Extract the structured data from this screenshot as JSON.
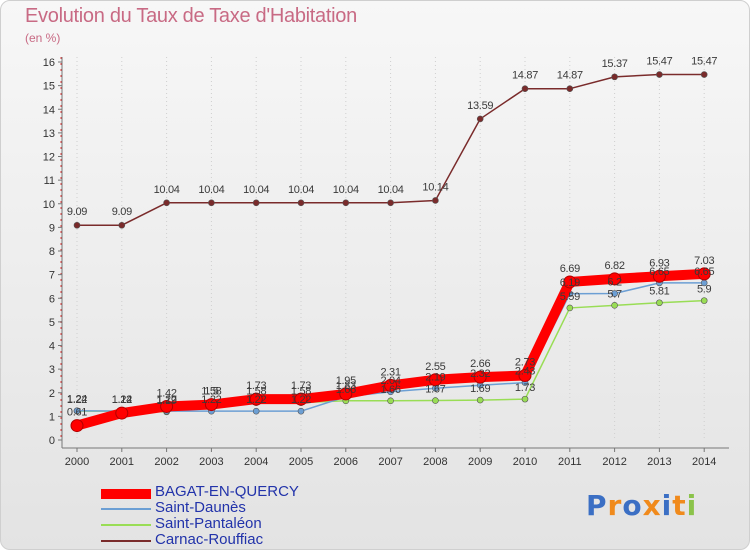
{
  "header": {
    "title": "Evolution du Taux de Taxe d'Habitation",
    "subtitle": "(en %)"
  },
  "brand": {
    "letters": [
      "P",
      "r",
      "o",
      "x",
      "i",
      "t",
      "i"
    ],
    "colors": [
      "#3b6fc4",
      "#f08a1c",
      "#3b6fc4",
      "#f08a1c",
      "#3b6fc4",
      "#f08a1c",
      "#8bc34a"
    ]
  },
  "chart_data": {
    "type": "line",
    "title": "Evolution du Taux de Taxe d'Habitation",
    "subtitle": "(en %)",
    "x": [
      "2000",
      "2001",
      "2002",
      "2003",
      "2004",
      "2005",
      "2006",
      "2007",
      "2008",
      "2009",
      "2010",
      "2011",
      "2012",
      "2013",
      "2014"
    ],
    "ylim": [
      0,
      16
    ],
    "yticks": [
      0,
      1,
      2,
      3,
      4,
      5,
      6,
      7,
      8,
      9,
      10,
      11,
      12,
      13,
      14,
      15,
      16
    ],
    "grid": "dotted vertical",
    "legend_position": "bottom-left",
    "series": [
      {
        "name": "BAGAT-EN-QUERCY",
        "color": "#ff0000",
        "values": [
          0.61,
          1.14,
          1.42,
          1.5,
          1.73,
          1.73,
          1.95,
          2.31,
          2.55,
          2.66,
          2.73,
          6.69,
          6.82,
          6.93,
          7.03
        ],
        "labels": [
          "0.61",
          "1.14",
          "1.42",
          "1.5",
          "1.73",
          "1.73",
          "1.95",
          "2.31",
          "2.55",
          "2.66",
          "2.73",
          "6.69",
          "6.82",
          "6.93",
          "7.03"
        ]
      },
      {
        "name": "Saint-Daunès",
        "color": "#6c9fd4",
        "values": [
          1.24,
          1.22,
          1.22,
          1.22,
          1.22,
          1.22,
          1.83,
          2.04,
          2.19,
          2.32,
          2.43,
          6.19,
          6.2,
          6.65,
          6.65
        ],
        "labels": [
          "1.24",
          "1.22",
          "1.22",
          "1.22",
          "1.22",
          "1.22",
          "1.83",
          "2.04",
          "2.19",
          "2.32",
          "2.43",
          "6.19",
          "6.2",
          "6.65",
          "6.65"
        ]
      },
      {
        "name": "Saint-Pantaléon",
        "color": "#99dd55",
        "values": [
          1.22,
          1.22,
          1.19,
          1.58,
          1.58,
          1.58,
          1.66,
          1.66,
          1.67,
          1.69,
          1.73,
          5.59,
          5.7,
          5.81,
          5.9
        ],
        "labels": [
          "1.22",
          "1.22",
          "1.19",
          "1.58",
          "1.58",
          "1.58",
          "1.66",
          "1.66",
          "1.67",
          "1.69",
          "1.73",
          "5.59",
          "5.7",
          "5.81",
          "5.9"
        ]
      },
      {
        "name": "Carnac-Rouffiac",
        "color": "#7a2b2b",
        "values": [
          9.09,
          9.09,
          10.04,
          10.04,
          10.04,
          10.04,
          10.04,
          10.04,
          10.14,
          13.59,
          14.87,
          14.87,
          15.37,
          15.47,
          15.47
        ],
        "labels": [
          "9.09",
          "9.09",
          "10.04",
          "10.04",
          "10.04",
          "10.04",
          "10.04",
          "10.04",
          "10.14",
          "13.59",
          "14.87",
          "14.87",
          "15.37",
          "15.47",
          "15.47"
        ]
      }
    ]
  }
}
